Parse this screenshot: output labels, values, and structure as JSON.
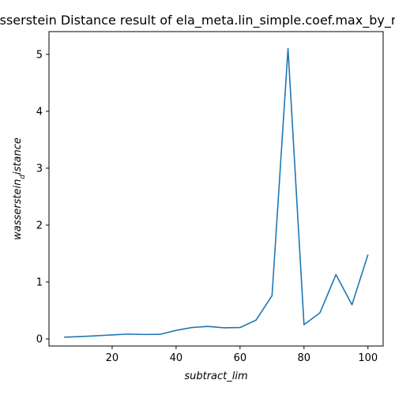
{
  "chart_data": {
    "type": "line",
    "title": "Wasserstein Distance result of ela_meta.lin_simple.coef.max_by_min",
    "xlabel": "subtract_lim",
    "ylabel_main": "wasserstein",
    "ylabel_sub": "d",
    "ylabel_rest": "istance",
    "x": [
      5,
      10,
      15,
      20,
      25,
      30,
      35,
      40,
      45,
      50,
      55,
      60,
      65,
      70,
      75,
      80,
      85,
      90,
      95,
      100
    ],
    "series": [
      {
        "values": [
          0.03,
          0.04,
          0.055,
          0.07,
          0.085,
          0.078,
          0.08,
          0.15,
          0.2,
          0.22,
          0.195,
          0.2,
          0.33,
          0.76,
          5.1,
          0.25,
          0.46,
          1.13,
          0.6,
          1.48
        ],
        "color": "#1f77b4"
      }
    ],
    "xlim": [
      0.25,
      104.75
    ],
    "ylim": [
      -0.125,
      5.4
    ],
    "xticks": [
      20,
      40,
      60,
      80,
      100
    ],
    "yticks": [
      0,
      1,
      2,
      3,
      4,
      5
    ],
    "grid": false,
    "legend": "none"
  }
}
